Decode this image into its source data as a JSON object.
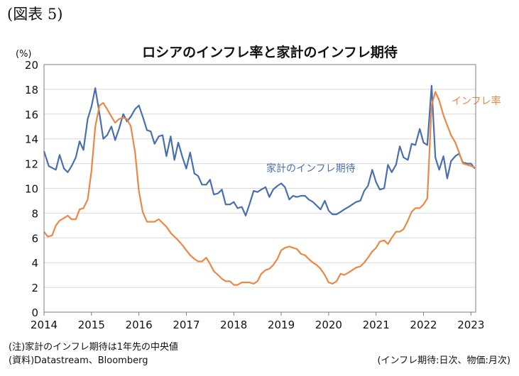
{
  "figure_label": "(図表 5)",
  "notes": {
    "footnote": "(注)家計のインフレ期待は1年先の中央値",
    "source": "(資料)Datastream、Bloomberg",
    "frequency": "(インフレ期待:日次、物価:月次)"
  },
  "chart_data": {
    "type": "line",
    "title": "ロシアのインフレ率と家計のインフレ期待",
    "ylabel": "(%)",
    "ylim": [
      0,
      20
    ],
    "yticks": [
      0,
      2,
      4,
      6,
      8,
      10,
      12,
      14,
      16,
      18,
      20
    ],
    "xlim": [
      2014,
      2023.1
    ],
    "xticks": [
      "2014",
      "2015",
      "2016",
      "2017",
      "2018",
      "2019",
      "2020",
      "2021",
      "2022",
      "2023"
    ],
    "grid": true,
    "series": [
      {
        "name": "家計のインフレ期待",
        "color": "#4a6fae",
        "x": [
          2014.0,
          2014.1,
          2014.25,
          2014.33,
          2014.42,
          2014.5,
          2014.58,
          2014.67,
          2014.75,
          2014.83,
          2014.92,
          2015.0,
          2015.08,
          2015.17,
          2015.25,
          2015.33,
          2015.42,
          2015.5,
          2015.58,
          2015.67,
          2015.75,
          2015.83,
          2015.92,
          2016.0,
          2016.08,
          2016.17,
          2016.25,
          2016.33,
          2016.42,
          2016.5,
          2016.58,
          2016.67,
          2016.75,
          2016.83,
          2016.92,
          2017.0,
          2017.08,
          2017.17,
          2017.25,
          2017.33,
          2017.42,
          2017.5,
          2017.58,
          2017.67,
          2017.75,
          2017.83,
          2017.92,
          2018.0,
          2018.08,
          2018.17,
          2018.25,
          2018.33,
          2018.42,
          2018.5,
          2018.58,
          2018.67,
          2018.75,
          2018.83,
          2018.92,
          2019.0,
          2019.08,
          2019.17,
          2019.25,
          2019.33,
          2019.42,
          2019.5,
          2019.58,
          2019.67,
          2019.75,
          2019.83,
          2019.92,
          2020.0,
          2020.08,
          2020.17,
          2020.25,
          2020.33,
          2020.42,
          2020.5,
          2020.58,
          2020.67,
          2020.75,
          2020.83,
          2020.92,
          2021.0,
          2021.08,
          2021.17,
          2021.25,
          2021.33,
          2021.42,
          2021.5,
          2021.58,
          2021.67,
          2021.75,
          2021.83,
          2021.92,
          2022.0,
          2022.08,
          2022.17,
          2022.25,
          2022.33,
          2022.42,
          2022.5,
          2022.58,
          2022.67,
          2022.75,
          2022.83,
          2022.92,
          2023.0,
          2023.08
        ],
        "values": [
          13.0,
          11.8,
          11.5,
          12.7,
          11.6,
          11.3,
          11.8,
          12.5,
          13.8,
          13.1,
          15.6,
          16.6,
          18.1,
          16.0,
          14.0,
          14.3,
          15.0,
          13.9,
          14.8,
          16.0,
          15.4,
          15.8,
          16.4,
          16.7,
          15.8,
          14.7,
          14.6,
          13.6,
          14.2,
          14.3,
          12.6,
          14.2,
          12.3,
          13.7,
          12.5,
          11.6,
          12.9,
          11.2,
          11.0,
          10.3,
          10.3,
          10.7,
          9.5,
          9.6,
          9.9,
          8.7,
          8.7,
          8.9,
          8.4,
          8.5,
          7.8,
          8.7,
          9.8,
          9.7,
          9.9,
          10.1,
          9.3,
          9.9,
          10.2,
          10.4,
          10.1,
          9.1,
          9.4,
          9.3,
          9.4,
          9.4,
          9.1,
          8.9,
          8.6,
          8.3,
          9.0,
          8.2,
          7.9,
          7.9,
          8.1,
          8.3,
          8.5,
          8.7,
          8.9,
          9.0,
          9.8,
          10.2,
          11.5,
          10.5,
          9.9,
          10.0,
          11.9,
          11.3,
          11.9,
          13.4,
          12.5,
          12.3,
          13.6,
          13.5,
          14.8,
          13.7,
          13.5,
          18.3,
          12.5,
          11.5,
          12.6,
          10.8,
          12.2,
          12.6,
          12.8,
          12.1,
          12.0,
          12.0,
          11.6
        ]
      },
      {
        "name": "インフレ率",
        "color": "#ea8845",
        "x": [
          2014.0,
          2014.08,
          2014.17,
          2014.25,
          2014.33,
          2014.42,
          2014.5,
          2014.58,
          2014.67,
          2014.75,
          2014.83,
          2014.92,
          2015.0,
          2015.08,
          2015.17,
          2015.25,
          2015.33,
          2015.42,
          2015.5,
          2015.58,
          2015.67,
          2015.75,
          2015.83,
          2015.92,
          2016.0,
          2016.08,
          2016.17,
          2016.25,
          2016.33,
          2016.42,
          2016.5,
          2016.58,
          2016.67,
          2016.75,
          2016.83,
          2016.92,
          2017.0,
          2017.08,
          2017.17,
          2017.25,
          2017.33,
          2017.42,
          2017.5,
          2017.58,
          2017.67,
          2017.75,
          2017.83,
          2017.92,
          2018.0,
          2018.08,
          2018.17,
          2018.25,
          2018.33,
          2018.42,
          2018.5,
          2018.58,
          2018.67,
          2018.75,
          2018.83,
          2018.92,
          2019.0,
          2019.08,
          2019.17,
          2019.25,
          2019.33,
          2019.42,
          2019.5,
          2019.58,
          2019.67,
          2019.75,
          2019.83,
          2019.92,
          2020.0,
          2020.08,
          2020.17,
          2020.25,
          2020.33,
          2020.42,
          2020.5,
          2020.58,
          2020.67,
          2020.75,
          2020.83,
          2020.92,
          2021.0,
          2021.08,
          2021.17,
          2021.25,
          2021.33,
          2021.42,
          2021.5,
          2021.58,
          2021.67,
          2021.75,
          2021.83,
          2021.92,
          2022.0,
          2022.08,
          2022.17,
          2022.25,
          2022.33,
          2022.42,
          2022.5,
          2022.58,
          2022.67,
          2022.75,
          2022.83,
          2022.92,
          2023.0,
          2023.08
        ],
        "values": [
          6.5,
          6.1,
          6.2,
          7.0,
          7.4,
          7.6,
          7.8,
          7.5,
          7.5,
          8.3,
          8.4,
          9.1,
          11.4,
          15.0,
          16.7,
          16.9,
          16.4,
          15.8,
          15.3,
          15.6,
          15.7,
          15.6,
          15.0,
          12.9,
          9.8,
          8.1,
          7.3,
          7.3,
          7.3,
          7.5,
          7.2,
          6.9,
          6.4,
          6.1,
          5.8,
          5.4,
          5.0,
          4.6,
          4.3,
          4.1,
          4.1,
          4.4,
          3.9,
          3.3,
          3.0,
          2.7,
          2.5,
          2.5,
          2.2,
          2.2,
          2.4,
          2.4,
          2.4,
          2.3,
          2.5,
          3.1,
          3.4,
          3.5,
          3.8,
          4.3,
          5.0,
          5.2,
          5.3,
          5.2,
          5.1,
          4.7,
          4.6,
          4.3,
          4.0,
          3.8,
          3.5,
          3.0,
          2.4,
          2.3,
          2.5,
          3.1,
          3.0,
          3.2,
          3.4,
          3.6,
          3.7,
          4.0,
          4.4,
          4.9,
          5.2,
          5.7,
          5.8,
          5.5,
          6.0,
          6.5,
          6.5,
          6.7,
          7.4,
          8.1,
          8.4,
          8.4,
          8.7,
          9.2,
          16.7,
          17.8,
          17.1,
          15.9,
          15.1,
          14.3,
          13.7,
          12.9,
          12.0,
          11.9,
          11.8,
          11.7
        ]
      }
    ],
    "annotations": [
      {
        "text": "家計のインフレ期待",
        "series": 0
      },
      {
        "text": "インフレ率",
        "series": 1
      }
    ]
  }
}
